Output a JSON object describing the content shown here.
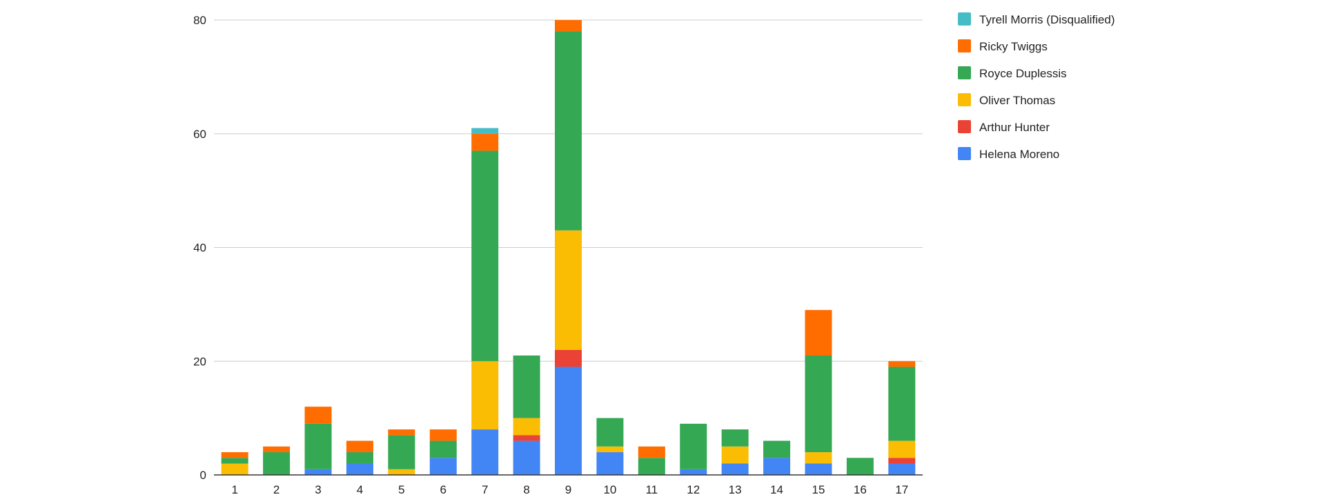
{
  "chart_data": {
    "type": "bar",
    "stacked": true,
    "title": "",
    "xlabel": "",
    "ylabel": "",
    "categories": [
      "1",
      "2",
      "3",
      "4",
      "5",
      "6",
      "7",
      "8",
      "9",
      "10",
      "11",
      "12",
      "13",
      "14",
      "15",
      "16",
      "17"
    ],
    "ylim": [
      0,
      80
    ],
    "yticks": [
      0,
      20,
      40,
      60,
      80
    ],
    "grid": true,
    "legend_position": "right",
    "series": [
      {
        "name": "Helena Moreno",
        "color": "#4285F4",
        "values": [
          0,
          0,
          1,
          2,
          0,
          3,
          8,
          6,
          19,
          4,
          0,
          1,
          2,
          3,
          2,
          0,
          2
        ]
      },
      {
        "name": "Arthur Hunter",
        "color": "#EA4335",
        "values": [
          0,
          0,
          0,
          0,
          0,
          0,
          0,
          1,
          3,
          0,
          0,
          0,
          0,
          0,
          0,
          0,
          1
        ]
      },
      {
        "name": "Oliver Thomas",
        "color": "#FBBC04",
        "values": [
          2,
          0,
          0,
          0,
          1,
          0,
          12,
          3,
          21,
          1,
          0,
          0,
          3,
          0,
          2,
          0,
          3
        ]
      },
      {
        "name": "Royce Duplessis",
        "color": "#34A853",
        "values": [
          1,
          4,
          8,
          2,
          6,
          3,
          37,
          11,
          35,
          5,
          3,
          8,
          3,
          3,
          17,
          3,
          13
        ]
      },
      {
        "name": "Ricky Twiggs",
        "color": "#FF6D01",
        "values": [
          1,
          1,
          3,
          2,
          1,
          2,
          3,
          0,
          2,
          0,
          2,
          0,
          0,
          0,
          8,
          0,
          1
        ]
      },
      {
        "name": "Tyrell Morris (Disqualified)",
        "color": "#46BDC6",
        "values": [
          0,
          0,
          0,
          0,
          0,
          0,
          1,
          0,
          0,
          0,
          0,
          0,
          0,
          0,
          0,
          0,
          0
        ]
      }
    ],
    "legend_order": [
      "Tyrell Morris (Disqualified)",
      "Ricky Twiggs",
      "Royce Duplessis",
      "Oliver Thomas",
      "Arthur Hunter",
      "Helena Moreno"
    ],
    "gridline_color": "#cccccc",
    "axis_color": "#333333"
  }
}
